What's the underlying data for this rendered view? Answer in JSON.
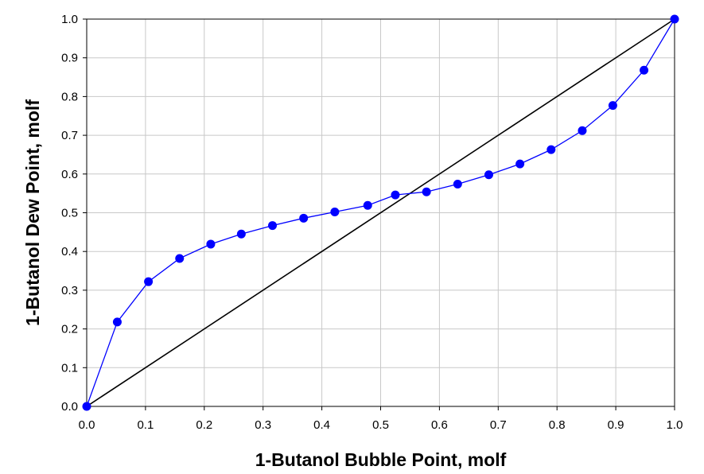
{
  "chart_data": {
    "type": "scatter",
    "title": "",
    "xlabel": "1-Butanol Bubble Point, molf",
    "ylabel": "1-Butanol Dew Point, molf",
    "xlim": [
      0,
      1
    ],
    "ylim": [
      0,
      1
    ],
    "x_ticks": [
      "0.0",
      "0.1",
      "0.2",
      "0.3",
      "0.4",
      "0.5",
      "0.6",
      "0.7",
      "0.8",
      "0.9",
      "1.0"
    ],
    "y_ticks": [
      "0.0",
      "0.1",
      "0.2",
      "0.3",
      "0.4",
      "0.5",
      "0.6",
      "0.7",
      "0.8",
      "0.9",
      "1.0"
    ],
    "grid": true,
    "legend": "none",
    "series": [
      {
        "color": "#0000ff",
        "marker": "circle",
        "line": true,
        "points": [
          [
            0.0,
            0.0
          ],
          [
            0.052,
            0.218
          ],
          [
            0.105,
            0.322
          ],
          [
            0.158,
            0.382
          ],
          [
            0.211,
            0.419
          ],
          [
            0.263,
            0.445
          ],
          [
            0.316,
            0.467
          ],
          [
            0.369,
            0.486
          ],
          [
            0.422,
            0.502
          ],
          [
            0.478,
            0.519
          ],
          [
            0.525,
            0.546
          ],
          [
            0.578,
            0.554
          ],
          [
            0.631,
            0.574
          ],
          [
            0.684,
            0.598
          ],
          [
            0.737,
            0.626
          ],
          [
            0.79,
            0.663
          ],
          [
            0.843,
            0.712
          ],
          [
            0.895,
            0.777
          ],
          [
            0.948,
            0.868
          ],
          [
            1.0,
            1.0
          ]
        ]
      },
      {
        "color": "#000000",
        "marker": "none",
        "line": true,
        "points": [
          [
            0.0,
            0.0
          ],
          [
            1.0,
            1.0
          ]
        ]
      }
    ]
  }
}
